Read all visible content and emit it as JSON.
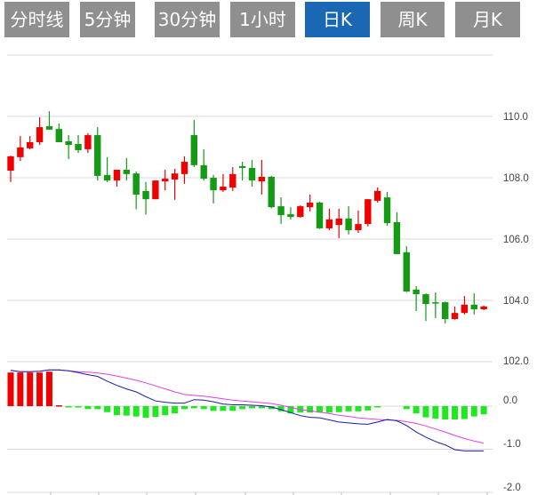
{
  "tabs": [
    {
      "label": "分时线",
      "active": false
    },
    {
      "label": "5分钟",
      "active": false
    },
    {
      "label": "30分钟",
      "active": false
    },
    {
      "label": "1小时",
      "active": false
    },
    {
      "label": "日K",
      "active": true
    },
    {
      "label": "周K",
      "active": false
    },
    {
      "label": "月K",
      "active": false
    }
  ],
  "colors": {
    "tab": "#8f8f8f",
    "tab_active": "#1a68b4",
    "up": "#f00000",
    "down": "#149a14",
    "hist_up": "#f00000",
    "hist_down": "#1ee81e",
    "dif": "#1a1aa8",
    "dea": "#e040e0",
    "grid": "#d8d8d8"
  },
  "chart_data": [
    {
      "type": "candlestick",
      "ylim": [
        102,
        112
      ],
      "yticks": [
        "110.0",
        "108.0",
        "106.0",
        "104.0",
        "102.0"
      ],
      "ytick_values": [
        110,
        108,
        106,
        104,
        102
      ],
      "grid": true,
      "up_color": "#f00000",
      "down_color": "#149a14",
      "candles": [
        [
          108.23,
          108.72,
          107.86,
          108.7
        ],
        [
          108.67,
          109.36,
          108.55,
          108.99
        ],
        [
          108.96,
          109.36,
          108.93,
          109.16
        ],
        [
          109.16,
          109.97,
          109.07,
          109.65
        ],
        [
          109.68,
          110.17,
          109.57,
          109.57
        ],
        [
          109.59,
          109.77,
          109.16,
          109.16
        ],
        [
          109.19,
          109.39,
          108.61,
          109.07
        ],
        [
          109.1,
          109.39,
          108.81,
          108.9
        ],
        [
          108.93,
          109.45,
          108.81,
          109.39
        ],
        [
          109.39,
          109.65,
          107.91,
          108.06
        ],
        [
          108.09,
          108.67,
          107.86,
          107.91
        ],
        [
          107.91,
          108.26,
          107.71,
          108.26
        ],
        [
          108.26,
          108.64,
          107.91,
          108.12
        ],
        [
          108.14,
          108.2,
          106.97,
          107.45
        ],
        [
          107.57,
          107.86,
          106.8,
          107.3
        ],
        [
          107.3,
          107.91,
          107.3,
          107.91
        ],
        [
          107.88,
          108.26,
          107.59,
          107.97
        ],
        [
          107.94,
          108.29,
          107.28,
          108.14
        ],
        [
          108.12,
          108.7,
          107.8,
          108.52
        ],
        [
          109.39,
          109.88,
          108.35,
          108.41
        ],
        [
          108.41,
          108.93,
          107.91,
          107.97
        ],
        [
          108.0,
          108.09,
          107.16,
          107.59
        ],
        [
          107.59,
          108.12,
          107.54,
          107.71
        ],
        [
          107.68,
          108.35,
          107.57,
          108.12
        ],
        [
          108.38,
          108.52,
          107.91,
          108.32
        ],
        [
          108.32,
          108.58,
          107.71,
          107.91
        ],
        [
          107.88,
          108.58,
          107.45,
          108.03
        ],
        [
          108.03,
          108.06,
          107.0,
          107.04
        ],
        [
          107.07,
          107.36,
          106.49,
          106.78
        ],
        [
          106.81,
          107.04,
          106.64,
          106.72
        ],
        [
          106.72,
          107.1,
          106.7,
          107.07
        ],
        [
          107.04,
          107.45,
          106.9,
          107.19
        ],
        [
          107.19,
          107.22,
          106.33,
          106.35
        ],
        [
          106.35,
          106.99,
          106.29,
          106.64
        ],
        [
          106.46,
          106.99,
          106.03,
          106.67
        ],
        [
          106.67,
          107.07,
          106.15,
          106.29
        ],
        [
          106.29,
          106.93,
          106.2,
          106.49
        ],
        [
          106.49,
          107.3,
          106.41,
          107.3
        ],
        [
          107.25,
          107.68,
          107.19,
          107.57
        ],
        [
          107.36,
          107.54,
          106.43,
          106.52
        ],
        [
          106.55,
          106.87,
          105.51,
          105.51
        ],
        [
          105.57,
          105.77,
          104.27,
          104.29
        ],
        [
          104.35,
          104.46,
          103.65,
          104.2
        ],
        [
          104.2,
          104.23,
          103.33,
          103.88
        ],
        [
          103.94,
          104.26,
          103.42,
          103.91
        ],
        [
          103.94,
          103.96,
          103.25,
          103.39
        ],
        [
          103.39,
          103.8,
          103.37,
          103.59
        ],
        [
          103.59,
          104.14,
          103.54,
          103.86
        ],
        [
          103.86,
          104.23,
          103.54,
          103.71
        ],
        [
          103.71,
          103.83,
          103.68,
          103.8
        ]
      ]
    },
    {
      "type": "macd",
      "ylim": [
        -2.0,
        1.0
      ],
      "yticks": [
        "0.0",
        "-1.0",
        "-2.0"
      ],
      "ytick_values": [
        0,
        -1,
        -2
      ],
      "hist": [
        0.78,
        0.78,
        0.78,
        0.78,
        0.8,
        0.02,
        -0.01,
        -0.03,
        -0.07,
        -0.07,
        -0.14,
        -0.21,
        -0.22,
        -0.24,
        -0.27,
        -0.25,
        -0.21,
        -0.17,
        -0.07,
        -0.05,
        -0.07,
        -0.11,
        -0.11,
        -0.11,
        -0.07,
        -0.05,
        -0.05,
        -0.07,
        -0.12,
        -0.17,
        -0.15,
        -0.15,
        -0.15,
        -0.15,
        -0.14,
        -0.12,
        -0.12,
        -0.1,
        -0.03,
        0,
        0,
        -0.07,
        -0.17,
        -0.26,
        -0.29,
        -0.31,
        -0.31,
        -0.3,
        -0.24,
        -0.19
      ],
      "dif": [
        0.83,
        0.8,
        0.8,
        0.81,
        0.84,
        0.84,
        0.82,
        0.78,
        0.73,
        0.69,
        0.58,
        0.48,
        0.4,
        0.33,
        0.22,
        0.12,
        0.09,
        0.07,
        0.07,
        0.15,
        0.14,
        0.1,
        0.05,
        0.03,
        0.03,
        0.02,
        0.01,
        -0.02,
        -0.08,
        -0.15,
        -0.22,
        -0.26,
        -0.27,
        -0.32,
        -0.37,
        -0.39,
        -0.41,
        -0.42,
        -0.37,
        -0.31,
        -0.34,
        -0.45,
        -0.6,
        -0.72,
        -0.82,
        -0.9,
        -1.01,
        -1.04,
        -1.04,
        -1.04
      ],
      "dea": [
        0.83,
        0.8,
        0.8,
        0.81,
        0.84,
        0.84,
        0.82,
        0.8,
        0.79,
        0.77,
        0.74,
        0.7,
        0.65,
        0.6,
        0.54,
        0.47,
        0.4,
        0.33,
        0.27,
        0.25,
        0.23,
        0.2,
        0.17,
        0.14,
        0.12,
        0.1,
        0.08,
        0.06,
        0.02,
        -0.03,
        -0.08,
        -0.11,
        -0.14,
        -0.17,
        -0.21,
        -0.24,
        -0.27,
        -0.29,
        -0.31,
        -0.32,
        -0.33,
        -0.36,
        -0.4,
        -0.46,
        -0.53,
        -0.6,
        -0.68,
        -0.75,
        -0.81,
        -0.86
      ]
    }
  ]
}
